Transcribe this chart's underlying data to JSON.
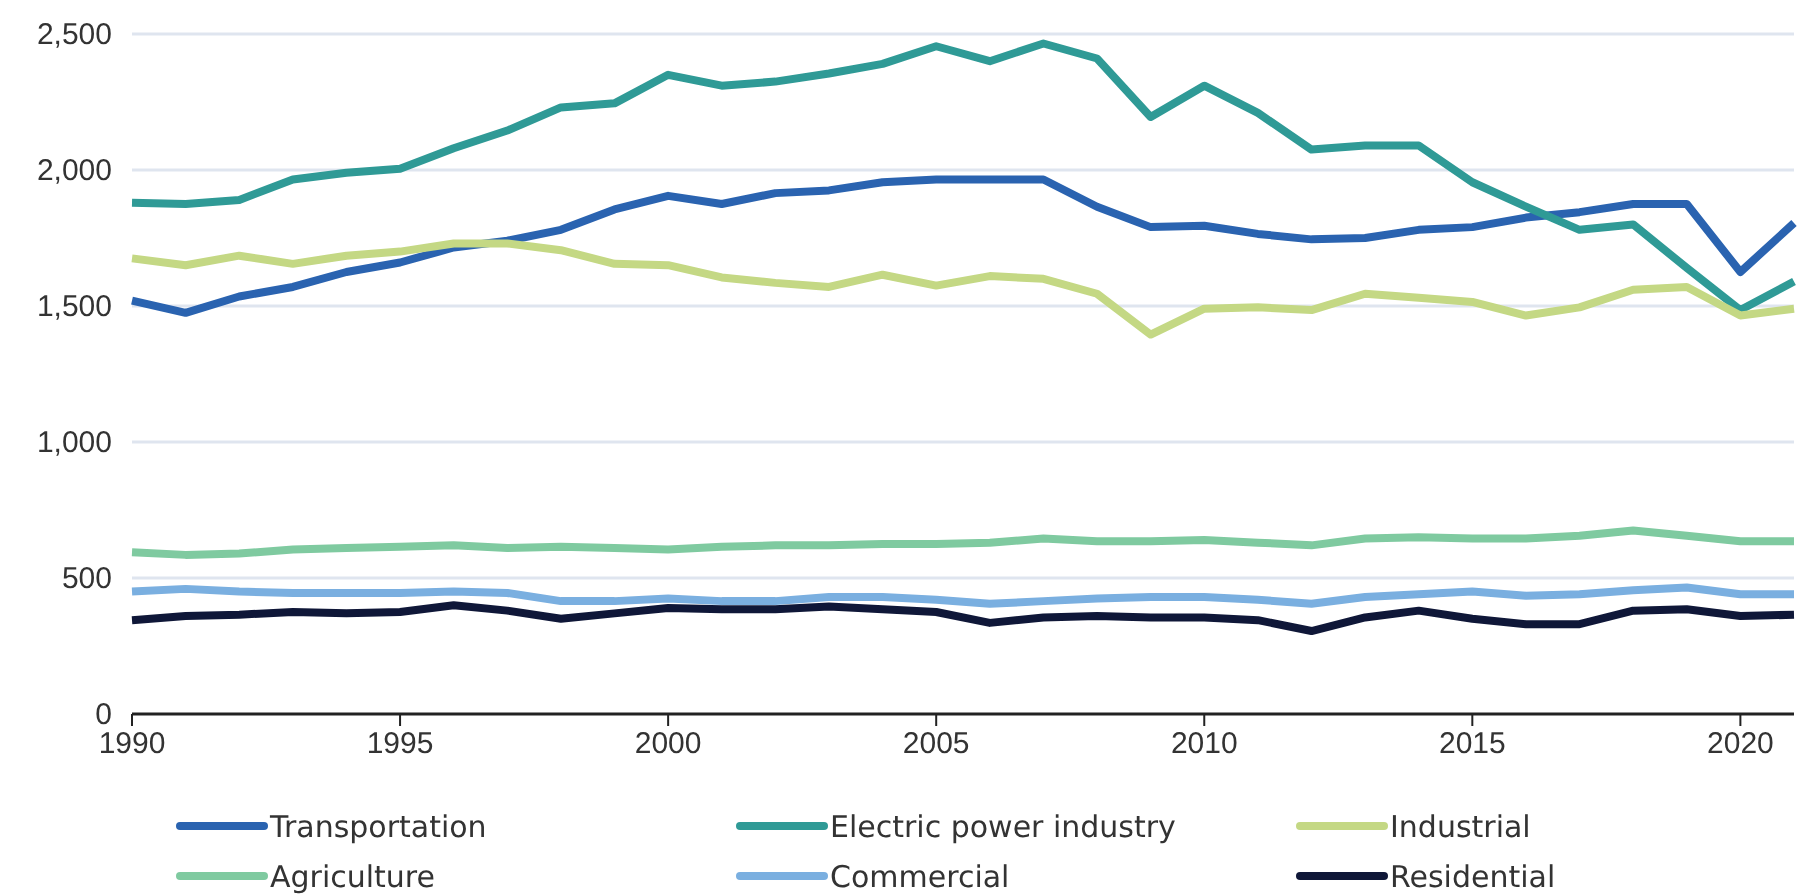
{
  "chart_data": {
    "type": "line",
    "x": [
      1990,
      1991,
      1992,
      1993,
      1994,
      1995,
      1996,
      1997,
      1998,
      1999,
      2000,
      2001,
      2002,
      2003,
      2004,
      2005,
      2006,
      2007,
      2008,
      2009,
      2010,
      2011,
      2012,
      2013,
      2014,
      2015,
      2016,
      2017,
      2018,
      2019,
      2020,
      2021
    ],
    "xlim": [
      1990,
      2021
    ],
    "xticks": [
      {
        "value": 1990,
        "label": "1990"
      },
      {
        "value": 1995,
        "label": "1995"
      },
      {
        "value": 2000,
        "label": "2000"
      },
      {
        "value": 2005,
        "label": "2005"
      },
      {
        "value": 2010,
        "label": "2010"
      },
      {
        "value": 2015,
        "label": "2015"
      },
      {
        "value": 2020,
        "label": "2020"
      }
    ],
    "ylim": [
      0,
      2500
    ],
    "yticks": [
      0,
      500,
      {
        "value": 1000,
        "label": "1,000"
      },
      {
        "value": 1500,
        "label": "1,500"
      },
      {
        "value": 2000,
        "label": "2,000"
      },
      {
        "value": 2500,
        "label": "2,500"
      }
    ],
    "grid": "y",
    "legend": "bottom",
    "marker": "none",
    "line_style": "solid",
    "series": [
      {
        "name": "Transportation",
        "color": "#2a63b0",
        "values": [
          1520,
          1475,
          1535,
          1570,
          1625,
          1660,
          1715,
          1740,
          1780,
          1855,
          1905,
          1875,
          1915,
          1925,
          1955,
          1965,
          1965,
          1965,
          1865,
          1790,
          1795,
          1765,
          1745,
          1750,
          1780,
          1790,
          1825,
          1845,
          1875,
          1875,
          1625,
          1805
        ]
      },
      {
        "name": "Electric power industry",
        "color": "#2f9a96",
        "values": [
          1880,
          1875,
          1890,
          1965,
          1990,
          2005,
          2080,
          2145,
          2230,
          2245,
          2350,
          2310,
          2325,
          2355,
          2390,
          2455,
          2400,
          2465,
          2410,
          2195,
          2310,
          2210,
          2075,
          2090,
          2090,
          1955,
          1865,
          1780,
          1800,
          1640,
          1485,
          1590
        ]
      },
      {
        "name": "Industrial",
        "color": "#c4d884",
        "values": [
          1675,
          1650,
          1685,
          1655,
          1685,
          1700,
          1730,
          1730,
          1705,
          1655,
          1650,
          1605,
          1585,
          1570,
          1615,
          1575,
          1610,
          1600,
          1545,
          1395,
          1490,
          1495,
          1485,
          1545,
          1530,
          1515,
          1465,
          1495,
          1560,
          1570,
          1465,
          1490
        ]
      },
      {
        "name": "Agriculture",
        "color": "#7fcaa0",
        "values": [
          595,
          585,
          590,
          605,
          610,
          615,
          620,
          610,
          615,
          610,
          605,
          615,
          620,
          620,
          625,
          625,
          630,
          645,
          635,
          635,
          640,
          630,
          620,
          645,
          650,
          645,
          645,
          655,
          675,
          655,
          635,
          635
        ]
      },
      {
        "name": "Commercial",
        "color": "#7aafe0",
        "values": [
          450,
          460,
          450,
          445,
          445,
          445,
          450,
          445,
          415,
          415,
          425,
          415,
          415,
          430,
          430,
          420,
          405,
          415,
          425,
          430,
          430,
          420,
          405,
          430,
          440,
          450,
          435,
          440,
          455,
          465,
          440,
          440
        ]
      },
      {
        "name": "Residential",
        "color": "#0f1738",
        "values": [
          345,
          360,
          365,
          375,
          370,
          375,
          400,
          380,
          350,
          370,
          390,
          385,
          385,
          395,
          385,
          375,
          335,
          355,
          360,
          355,
          355,
          345,
          305,
          355,
          380,
          350,
          330,
          330,
          380,
          385,
          360,
          365
        ]
      }
    ]
  }
}
